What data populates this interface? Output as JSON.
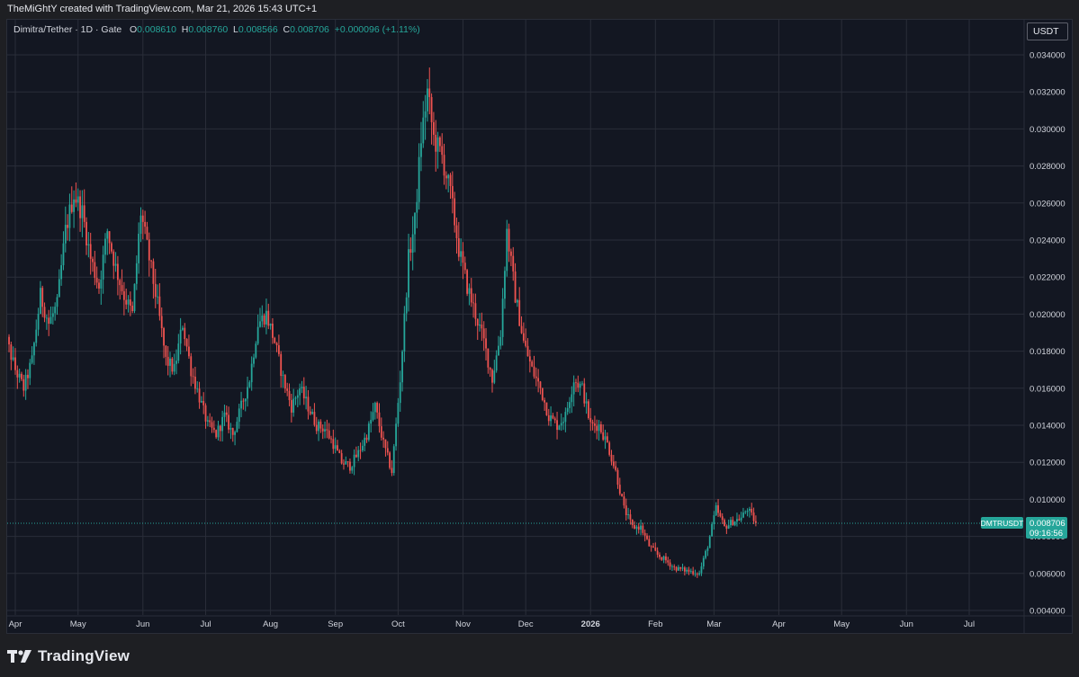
{
  "attribution": "TheMiGhtY created with TradingView.com, Mar 21, 2026 15:43 UTC+1",
  "legend": {
    "symbol": "Dimitra/Tether · 1D · Gate",
    "o_label": "O",
    "o": "0.008610",
    "h_label": "H",
    "h": "0.008760",
    "l_label": "L",
    "l": "0.008566",
    "c_label": "C",
    "c": "0.008706",
    "change": "+0.000096 (+1.11%)"
  },
  "currency": "USDT",
  "price_tag": {
    "symbol": "DMTRUSDT",
    "price": "0.008706",
    "countdown": "09:16:56"
  },
  "brand": "TradingView",
  "colors": {
    "up": "#26a69a",
    "down": "#ef5350",
    "background": "#131722",
    "grid": "#2a2e39"
  },
  "chart_data": {
    "type": "candlestick",
    "interval": "1D",
    "ylim": [
      0.004,
      0.035
    ],
    "y_ticks": [
      "0.004000",
      "0.006000",
      "0.008000",
      "0.010000",
      "0.012000",
      "0.014000",
      "0.016000",
      "0.018000",
      "0.020000",
      "0.022000",
      "0.024000",
      "0.026000",
      "0.028000",
      "0.030000",
      "0.032000",
      "0.034000"
    ],
    "x_ticks": [
      "Apr",
      "May",
      "Jun",
      "Jul",
      "Aug",
      "Sep",
      "Oct",
      "Nov",
      "Dec",
      "2026",
      "Feb",
      "Mar",
      "Apr",
      "May",
      "Jun",
      "Jul"
    ],
    "close_series": [
      {
        "date": "2025-03-25",
        "close": 0.02
      },
      {
        "date": "2025-03-28",
        "close": 0.0185
      },
      {
        "date": "2025-04-01",
        "close": 0.017
      },
      {
        "date": "2025-04-05",
        "close": 0.016
      },
      {
        "date": "2025-04-09",
        "close": 0.0175
      },
      {
        "date": "2025-04-13",
        "close": 0.021
      },
      {
        "date": "2025-04-17",
        "close": 0.0195
      },
      {
        "date": "2025-04-21",
        "close": 0.0205
      },
      {
        "date": "2025-04-25",
        "close": 0.0245
      },
      {
        "date": "2025-04-29",
        "close": 0.0265
      },
      {
        "date": "2025-05-03",
        "close": 0.0255
      },
      {
        "date": "2025-05-07",
        "close": 0.023
      },
      {
        "date": "2025-05-11",
        "close": 0.0215
      },
      {
        "date": "2025-05-15",
        "close": 0.0245
      },
      {
        "date": "2025-05-19",
        "close": 0.0225
      },
      {
        "date": "2025-05-23",
        "close": 0.021
      },
      {
        "date": "2025-05-27",
        "close": 0.02
      },
      {
        "date": "2025-05-31",
        "close": 0.0255
      },
      {
        "date": "2025-06-04",
        "close": 0.023
      },
      {
        "date": "2025-06-08",
        "close": 0.0205
      },
      {
        "date": "2025-06-12",
        "close": 0.0175
      },
      {
        "date": "2025-06-16",
        "close": 0.017
      },
      {
        "date": "2025-06-20",
        "close": 0.0195
      },
      {
        "date": "2025-06-24",
        "close": 0.017
      },
      {
        "date": "2025-06-28",
        "close": 0.0155
      },
      {
        "date": "2025-07-02",
        "close": 0.014
      },
      {
        "date": "2025-07-06",
        "close": 0.0135
      },
      {
        "date": "2025-07-10",
        "close": 0.0145
      },
      {
        "date": "2025-07-14",
        "close": 0.0135
      },
      {
        "date": "2025-07-18",
        "close": 0.015
      },
      {
        "date": "2025-07-22",
        "close": 0.0165
      },
      {
        "date": "2025-07-26",
        "close": 0.0195
      },
      {
        "date": "2025-07-30",
        "close": 0.02
      },
      {
        "date": "2025-08-03",
        "close": 0.0185
      },
      {
        "date": "2025-08-07",
        "close": 0.0165
      },
      {
        "date": "2025-08-11",
        "close": 0.015
      },
      {
        "date": "2025-08-15",
        "close": 0.016
      },
      {
        "date": "2025-08-19",
        "close": 0.015
      },
      {
        "date": "2025-08-23",
        "close": 0.014
      },
      {
        "date": "2025-08-27",
        "close": 0.0138
      },
      {
        "date": "2025-08-31",
        "close": 0.013
      },
      {
        "date": "2025-09-04",
        "close": 0.012
      },
      {
        "date": "2025-09-08",
        "close": 0.0118
      },
      {
        "date": "2025-09-12",
        "close": 0.0125
      },
      {
        "date": "2025-09-16",
        "close": 0.0135
      },
      {
        "date": "2025-09-20",
        "close": 0.015
      },
      {
        "date": "2025-09-24",
        "close": 0.013
      },
      {
        "date": "2025-09-28",
        "close": 0.0115
      },
      {
        "date": "2025-10-02",
        "close": 0.0165
      },
      {
        "date": "2025-10-06",
        "close": 0.023
      },
      {
        "date": "2025-10-09",
        "close": 0.025
      },
      {
        "date": "2025-10-12",
        "close": 0.0295
      },
      {
        "date": "2025-10-15",
        "close": 0.032
      },
      {
        "date": "2025-10-18",
        "close": 0.0295
      },
      {
        "date": "2025-10-22",
        "close": 0.0285
      },
      {
        "date": "2025-10-26",
        "close": 0.0265
      },
      {
        "date": "2025-10-30",
        "close": 0.0235
      },
      {
        "date": "2025-11-03",
        "close": 0.0215
      },
      {
        "date": "2025-11-07",
        "close": 0.02
      },
      {
        "date": "2025-11-11",
        "close": 0.0185
      },
      {
        "date": "2025-11-15",
        "close": 0.0165
      },
      {
        "date": "2025-11-19",
        "close": 0.019
      },
      {
        "date": "2025-11-22",
        "close": 0.0245
      },
      {
        "date": "2025-11-26",
        "close": 0.021
      },
      {
        "date": "2025-11-30",
        "close": 0.0185
      },
      {
        "date": "2025-12-04",
        "close": 0.017
      },
      {
        "date": "2025-12-08",
        "close": 0.016
      },
      {
        "date": "2025-12-12",
        "close": 0.0145
      },
      {
        "date": "2025-12-16",
        "close": 0.014
      },
      {
        "date": "2025-12-20",
        "close": 0.0145
      },
      {
        "date": "2025-12-24",
        "close": 0.0165
      },
      {
        "date": "2025-12-28",
        "close": 0.016
      },
      {
        "date": "2026-01-01",
        "close": 0.014
      },
      {
        "date": "2026-01-05",
        "close": 0.014
      },
      {
        "date": "2026-01-09",
        "close": 0.013
      },
      {
        "date": "2026-01-13",
        "close": 0.0115
      },
      {
        "date": "2026-01-17",
        "close": 0.0095
      },
      {
        "date": "2026-01-21",
        "close": 0.0085
      },
      {
        "date": "2026-01-25",
        "close": 0.0085
      },
      {
        "date": "2026-01-29",
        "close": 0.0075
      },
      {
        "date": "2026-02-02",
        "close": 0.007
      },
      {
        "date": "2026-02-06",
        "close": 0.0067
      },
      {
        "date": "2026-02-10",
        "close": 0.0063
      },
      {
        "date": "2026-02-14",
        "close": 0.0062
      },
      {
        "date": "2026-02-18",
        "close": 0.0061
      },
      {
        "date": "2026-02-22",
        "close": 0.006
      },
      {
        "date": "2026-02-26",
        "close": 0.0075
      },
      {
        "date": "2026-03-02",
        "close": 0.0095
      },
      {
        "date": "2026-03-06",
        "close": 0.0085
      },
      {
        "date": "2026-03-10",
        "close": 0.0088
      },
      {
        "date": "2026-03-14",
        "close": 0.009
      },
      {
        "date": "2026-03-17",
        "close": 0.0095
      },
      {
        "date": "2026-03-21",
        "close": 0.00871
      }
    ]
  }
}
